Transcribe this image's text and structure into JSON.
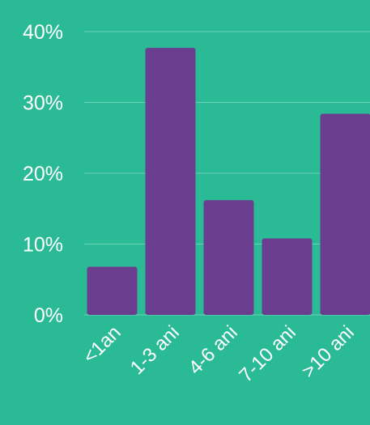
{
  "colors": {
    "background": "#2bba96",
    "bar": "#6a3d8f",
    "grid": "#6fd3b8",
    "text": "#ffffff"
  },
  "chart_data": {
    "type": "bar",
    "categories": [
      "<1an",
      "1-3 ani",
      "4-6 ani",
      "7-10 ani",
      ">10 ani"
    ],
    "values": [
      6.8,
      37.7,
      16.2,
      10.8,
      28.4
    ],
    "ylim": [
      0,
      40
    ],
    "yticks": [
      0,
      10,
      20,
      30,
      40
    ],
    "ytick_labels": [
      "0%",
      "10%",
      "20%",
      "30%",
      "40%"
    ],
    "grid": true,
    "legend": "none"
  }
}
